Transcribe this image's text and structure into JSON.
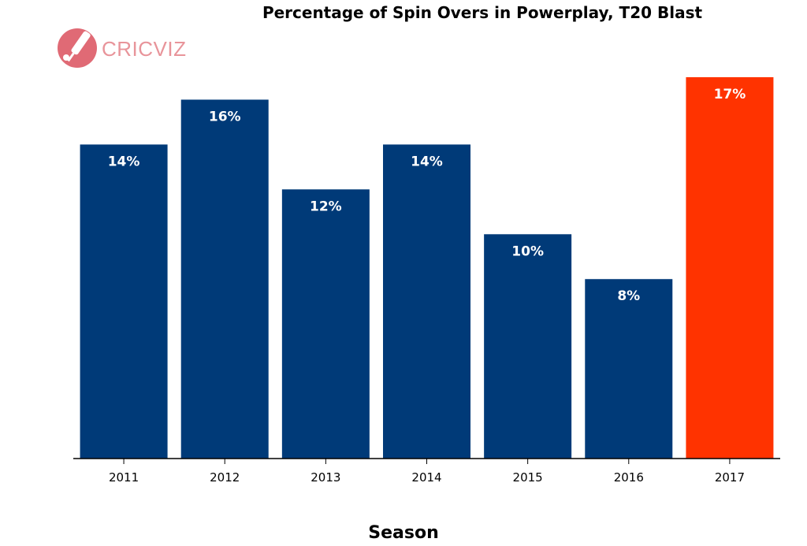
{
  "logo": {
    "text": "CRICVIZ",
    "text_color": "#e8949a",
    "icon_color": "#e06a75",
    "icon": "cricket-bat-and-ball-icon"
  },
  "chart_data": {
    "type": "bar",
    "title": "Percentage of Spin Overs in Powerplay, T20 Blast",
    "xlabel": "Season",
    "ylabel": "",
    "categories": [
      "2011",
      "2012",
      "2013",
      "2014",
      "2015",
      "2016",
      "2017"
    ],
    "values": [
      14,
      16,
      12,
      14,
      10,
      8,
      17
    ],
    "data_labels": [
      "14%",
      "16%",
      "12%",
      "14%",
      "10%",
      "8%",
      "17%"
    ],
    "ylim": [
      0,
      17
    ],
    "colors": {
      "default": "#003a78",
      "highlight": "#ff3300",
      "highlight_category": "2017"
    },
    "grid": false,
    "legend": "none"
  }
}
